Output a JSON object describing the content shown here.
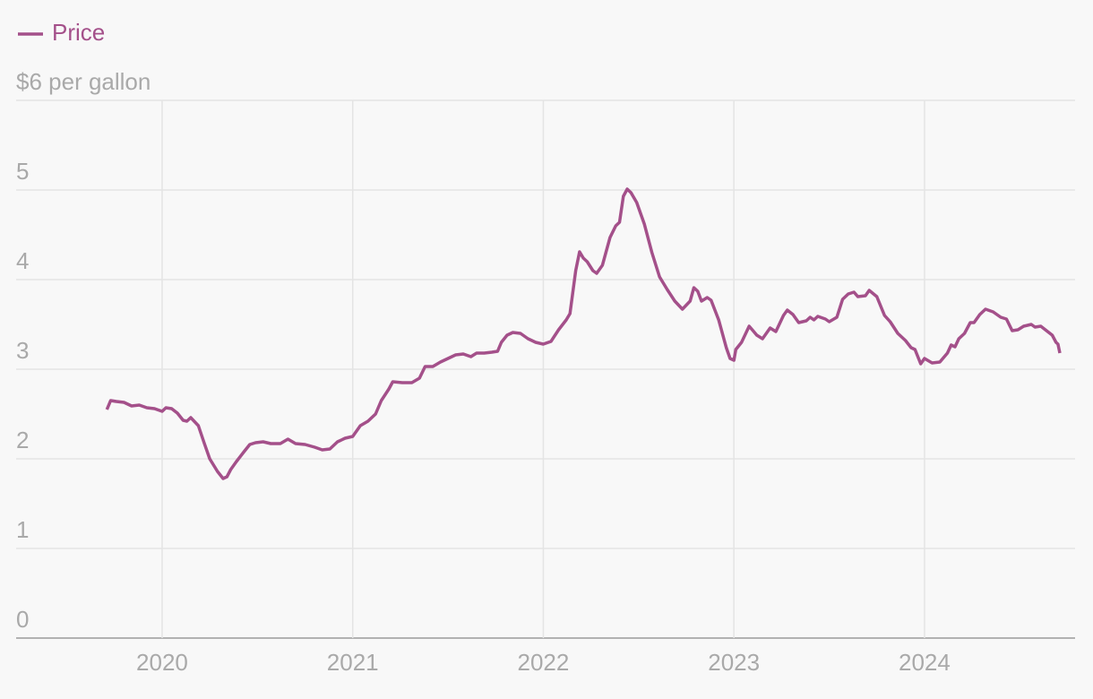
{
  "chart_data": {
    "type": "line",
    "x": [
      2019.71,
      2019.73,
      2019.76,
      2019.8,
      2019.84,
      2019.88,
      2019.92,
      2019.96,
      2020.0,
      2020.02,
      2020.05,
      2020.08,
      2020.11,
      2020.13,
      2020.15,
      2020.19,
      2020.22,
      2020.25,
      2020.29,
      2020.32,
      2020.34,
      2020.36,
      2020.39,
      2020.43,
      2020.46,
      2020.49,
      2020.53,
      2020.57,
      2020.62,
      2020.66,
      2020.7,
      2020.75,
      2020.8,
      2020.84,
      2020.88,
      2020.92,
      2020.96,
      2021.0,
      2021.04,
      2021.08,
      2021.12,
      2021.15,
      2021.19,
      2021.21,
      2021.26,
      2021.31,
      2021.35,
      2021.38,
      2021.42,
      2021.46,
      2021.5,
      2021.54,
      2021.58,
      2021.62,
      2021.65,
      2021.69,
      2021.73,
      2021.76,
      2021.78,
      2021.81,
      2021.84,
      2021.88,
      2021.92,
      2021.96,
      2022.0,
      2022.04,
      2022.08,
      2022.12,
      2022.14,
      2022.17,
      2022.19,
      2022.21,
      2022.23,
      2022.26,
      2022.28,
      2022.31,
      2022.35,
      2022.38,
      2022.4,
      2022.42,
      2022.44,
      2022.46,
      2022.49,
      2022.53,
      2022.57,
      2022.61,
      2022.65,
      2022.69,
      2022.73,
      2022.77,
      2022.79,
      2022.81,
      2022.83,
      2022.86,
      2022.88,
      2022.92,
      2022.96,
      2022.98,
      2023.0,
      2023.01,
      2023.04,
      2023.08,
      2023.1,
      2023.12,
      2023.15,
      2023.19,
      2023.22,
      2023.26,
      2023.28,
      2023.31,
      2023.34,
      2023.38,
      2023.4,
      2023.42,
      2023.44,
      2023.48,
      2023.5,
      2023.54,
      2023.57,
      2023.6,
      2023.63,
      2023.65,
      2023.69,
      2023.71,
      2023.75,
      2023.79,
      2023.82,
      2023.86,
      2023.9,
      2023.93,
      2023.95,
      2023.98,
      2024.0,
      2024.04,
      2024.08,
      2024.12,
      2024.14,
      2024.16,
      2024.18,
      2024.21,
      2024.24,
      2024.26,
      2024.29,
      2024.32,
      2024.36,
      2024.4,
      2024.43,
      2024.46,
      2024.49,
      2024.52,
      2024.56,
      2024.58,
      2024.61,
      2024.64,
      2024.67,
      2024.69,
      2024.7,
      2024.71
    ],
    "series": [
      {
        "name": "Price",
        "color": "#a4508a",
        "values": [
          2.55,
          2.65,
          2.64,
          2.63,
          2.59,
          2.6,
          2.57,
          2.56,
          2.53,
          2.57,
          2.56,
          2.51,
          2.43,
          2.42,
          2.46,
          2.37,
          2.18,
          2.0,
          1.86,
          1.78,
          1.8,
          1.88,
          1.97,
          2.08,
          2.16,
          2.18,
          2.19,
          2.17,
          2.17,
          2.22,
          2.17,
          2.16,
          2.13,
          2.1,
          2.11,
          2.19,
          2.23,
          2.25,
          2.37,
          2.42,
          2.5,
          2.65,
          2.78,
          2.86,
          2.85,
          2.85,
          2.9,
          3.03,
          3.03,
          3.08,
          3.12,
          3.16,
          3.17,
          3.14,
          3.18,
          3.18,
          3.19,
          3.2,
          3.3,
          3.38,
          3.41,
          3.4,
          3.34,
          3.3,
          3.28,
          3.31,
          3.44,
          3.55,
          3.62,
          4.1,
          4.31,
          4.24,
          4.2,
          4.1,
          4.07,
          4.16,
          4.47,
          4.6,
          4.64,
          4.93,
          5.01,
          4.97,
          4.86,
          4.62,
          4.3,
          4.03,
          3.89,
          3.76,
          3.67,
          3.76,
          3.91,
          3.87,
          3.76,
          3.8,
          3.77,
          3.55,
          3.24,
          3.12,
          3.1,
          3.22,
          3.3,
          3.48,
          3.43,
          3.38,
          3.34,
          3.46,
          3.42,
          3.6,
          3.66,
          3.61,
          3.52,
          3.54,
          3.58,
          3.55,
          3.59,
          3.56,
          3.53,
          3.58,
          3.78,
          3.84,
          3.86,
          3.81,
          3.82,
          3.88,
          3.81,
          3.6,
          3.53,
          3.4,
          3.32,
          3.24,
          3.22,
          3.06,
          3.12,
          3.07,
          3.08,
          3.18,
          3.27,
          3.25,
          3.34,
          3.4,
          3.52,
          3.52,
          3.61,
          3.67,
          3.64,
          3.58,
          3.56,
          3.43,
          3.44,
          3.48,
          3.5,
          3.47,
          3.48,
          3.43,
          3.38,
          3.3,
          3.28,
          3.18
        ]
      }
    ],
    "xlim": [
      2019.234,
      2024.79
    ],
    "xticks": [
      2020,
      2021,
      2022,
      2023,
      2024
    ],
    "ylim": [
      0,
      6
    ],
    "yticks": [
      0,
      1,
      2,
      3,
      4,
      5,
      {
        "value": 6,
        "label": "$6 per gallon"
      }
    ],
    "grid": true
  }
}
